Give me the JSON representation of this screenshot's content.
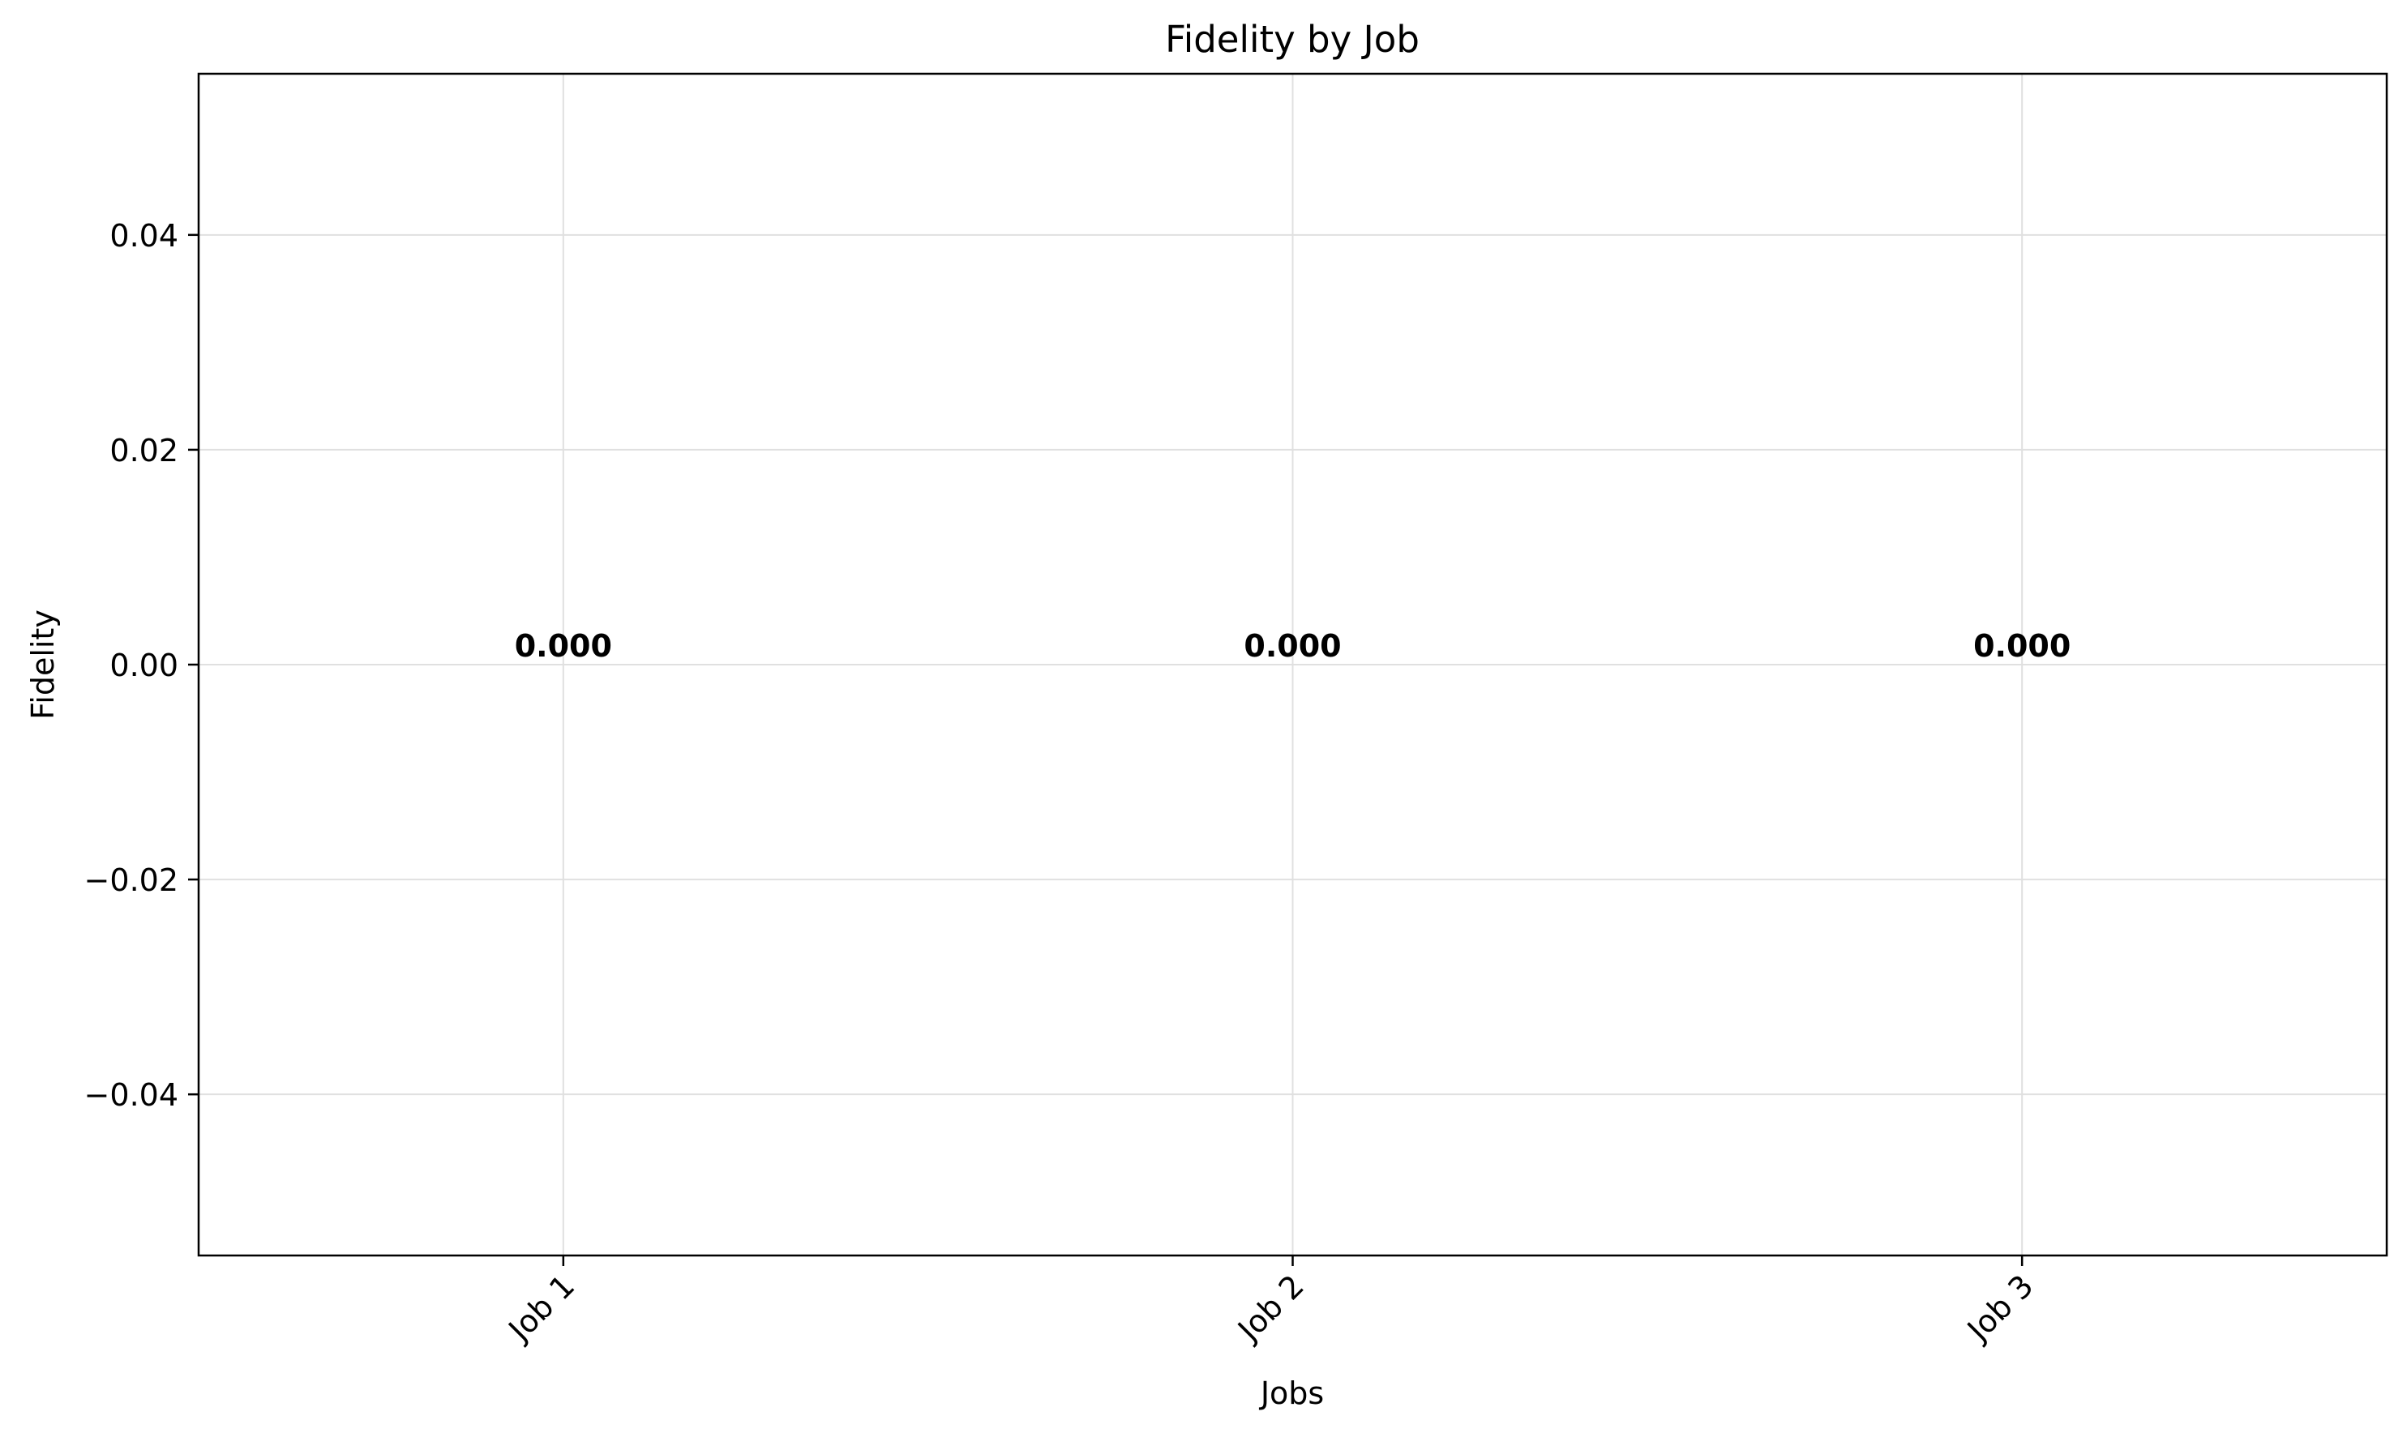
{
  "chart_data": {
    "type": "bar",
    "title": "Fidelity by Job",
    "xlabel": "Jobs",
    "ylabel": "Fidelity",
    "categories": [
      "Job 1",
      "Job 2",
      "Job 3"
    ],
    "values": [
      0.0,
      0.0,
      0.0
    ],
    "value_labels": [
      "0.000",
      "0.000",
      "0.000"
    ],
    "ylim": [
      -0.055,
      0.055
    ],
    "y_ticks": [
      -0.04,
      -0.02,
      0.0,
      0.02,
      0.04
    ],
    "y_tick_labels": [
      "−0.04",
      "−0.02",
      "0.00",
      "0.02",
      "0.04"
    ],
    "x_tick_rotation_deg": 45,
    "grid": true,
    "legend": "none",
    "colors": {
      "grid": "#e0e0e0",
      "bar": "#1f77b4",
      "text": "#000000"
    }
  }
}
